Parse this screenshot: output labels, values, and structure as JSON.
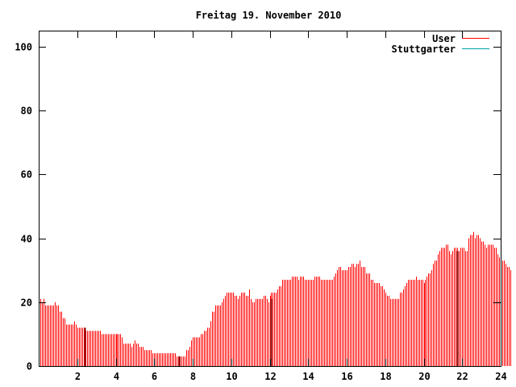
{
  "chart_data": {
    "type": "bar",
    "title": "Freitag 19. November 2010",
    "xlabel": "",
    "ylabel": "",
    "xlim": [
      0,
      24
    ],
    "ylim": [
      0,
      105
    ],
    "xticks": [
      2,
      4,
      6,
      8,
      10,
      12,
      14,
      16,
      18,
      20,
      22,
      24
    ],
    "yticks": [
      0,
      20,
      40,
      60,
      80,
      100
    ],
    "grid": false,
    "legend_position": "top-right",
    "colors": {
      "User": "#ff0000",
      "Stuttgarter": "#00a0a0",
      "dark_bar": "#8b0000"
    },
    "series": [
      {
        "name": "User",
        "interval_minutes": 5,
        "values": [
          21,
          21,
          20,
          21,
          19,
          19,
          19,
          19,
          19,
          19,
          20,
          19,
          19,
          17,
          17,
          15,
          15,
          13,
          13,
          13,
          13,
          13,
          14,
          13,
          12,
          12,
          12,
          12,
          12,
          11,
          11,
          11,
          11,
          11,
          11,
          11,
          11,
          11,
          11,
          10,
          10,
          10,
          10,
          10,
          10,
          10,
          10,
          10,
          10,
          10,
          10,
          10,
          9,
          7,
          7,
          7,
          7,
          7,
          6,
          7,
          8,
          7,
          7,
          6,
          6,
          6,
          5,
          5,
          5,
          5,
          5,
          4,
          4,
          4,
          4,
          4,
          4,
          4,
          4,
          4,
          4,
          4,
          4,
          4,
          4,
          4,
          3,
          3,
          3,
          3,
          3,
          3,
          5,
          5,
          6,
          8,
          9,
          9,
          9,
          9,
          9,
          10,
          10,
          11,
          11,
          12,
          12,
          14,
          17,
          17,
          19,
          19,
          19,
          19,
          20,
          21,
          22,
          23,
          23,
          23,
          23,
          23,
          22,
          22,
          21,
          22,
          23,
          23,
          23,
          22,
          22,
          24,
          21,
          20,
          20,
          21,
          21,
          21,
          21,
          21,
          22,
          22,
          21,
          20,
          22,
          23,
          23,
          23,
          23,
          24,
          25,
          25,
          27,
          27,
          27,
          27,
          27,
          27,
          28,
          28,
          28,
          28,
          27,
          28,
          28,
          28,
          27,
          27,
          27,
          27,
          27,
          27,
          28,
          28,
          28,
          28,
          27,
          27,
          27,
          27,
          27,
          27,
          27,
          27,
          28,
          29,
          30,
          31,
          31,
          30,
          30,
          30,
          30,
          31,
          31,
          32,
          32,
          31,
          32,
          32,
          33,
          31,
          31,
          31,
          29,
          29,
          29,
          27,
          27,
          26,
          26,
          26,
          26,
          25,
          25,
          24,
          23,
          22,
          22,
          21,
          21,
          21,
          21,
          21,
          21,
          23,
          23,
          24,
          25,
          26,
          27,
          27,
          27,
          27,
          27,
          28,
          27,
          27,
          27,
          27,
          26,
          27,
          28,
          29,
          29,
          30,
          32,
          33,
          33,
          35,
          36,
          37,
          37,
          37,
          38,
          38,
          36,
          35,
          36,
          37,
          37,
          37,
          36,
          37,
          37,
          37,
          36,
          36,
          40,
          41,
          41,
          42,
          40,
          41,
          41,
          40,
          39,
          39,
          38,
          37,
          38,
          38,
          38,
          38,
          37,
          37,
          35,
          34,
          33,
          33,
          33,
          32,
          31,
          31,
          30
        ]
      },
      {
        "name": "Stuttgarter",
        "interval_minutes": 5,
        "values": []
      }
    ],
    "highlight_bars": [
      {
        "x": 2.4,
        "y": 12
      },
      {
        "x": 7.3,
        "y": 3
      },
      {
        "x": 12.05,
        "y": 21
      },
      {
        "x": 21.75,
        "y": 36
      }
    ]
  }
}
